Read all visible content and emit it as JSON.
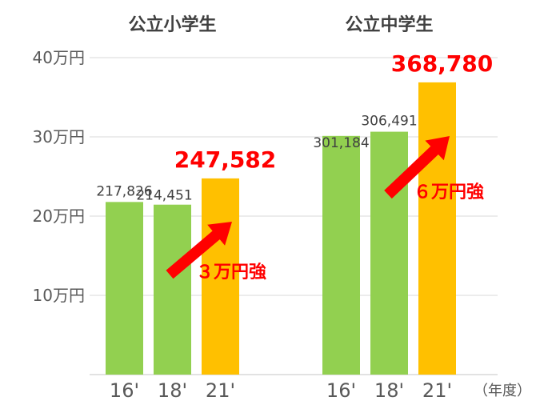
{
  "chart_data": {
    "type": "bar",
    "unit_label": "（年度）",
    "yticks": [
      "10万円",
      "20万円",
      "30万円",
      "40万円"
    ],
    "ytick_values": [
      100000,
      200000,
      300000,
      400000
    ],
    "ylim": [
      0,
      400000
    ],
    "grid": true,
    "groups": [
      {
        "title": "公立小学生",
        "categories": [
          "16'",
          "18'",
          "21'"
        ],
        "values": [
          217826,
          214451,
          247582
        ],
        "labels": [
          "217,826",
          "214,451",
          "247,582"
        ],
        "colors": [
          "#92d050",
          "#92d050",
          "#ffc000"
        ],
        "highlight_index": 2,
        "increase_label": "３万円強"
      },
      {
        "title": "公立中学生",
        "categories": [
          "16'",
          "18'",
          "21'"
        ],
        "values": [
          301184,
          306491,
          368780
        ],
        "labels": [
          "301,184",
          "306,491",
          "368,780"
        ],
        "colors": [
          "#92d050",
          "#92d050",
          "#ffc000"
        ],
        "highlight_index": 2,
        "increase_label": "６万円強"
      }
    ],
    "arrow_color": "#ff0000",
    "gridline_color": "#d9d9d9"
  }
}
